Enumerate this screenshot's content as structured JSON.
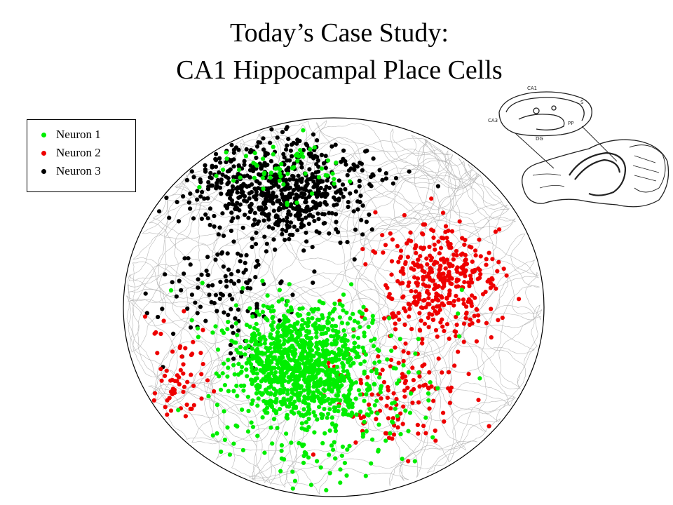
{
  "slide": {
    "title_line1": "Today’s Case Study:",
    "title_line2": "CA1 Hippocampal Place Cells"
  },
  "legend": [
    {
      "label": "Neuron 1",
      "color": "#00ee00"
    },
    {
      "label": "Neuron 2",
      "color": "#ee0000"
    },
    {
      "label": "Neuron 3",
      "color": "#000000"
    }
  ],
  "colors": {
    "trajectory": "#b8b8b8",
    "arena_outline": "#000000",
    "background": "#ffffff"
  },
  "figure": {
    "arena_shape": "circle",
    "field_regions": {
      "neuron_1": "center-bottom",
      "neuron_2": "right",
      "neuron_3": "top"
    }
  },
  "brain_diagram": {
    "labels": [
      "CA1",
      "CA3",
      "DG",
      "S",
      "PP"
    ],
    "icon": "rat-brain-hippocampus-diagram"
  }
}
